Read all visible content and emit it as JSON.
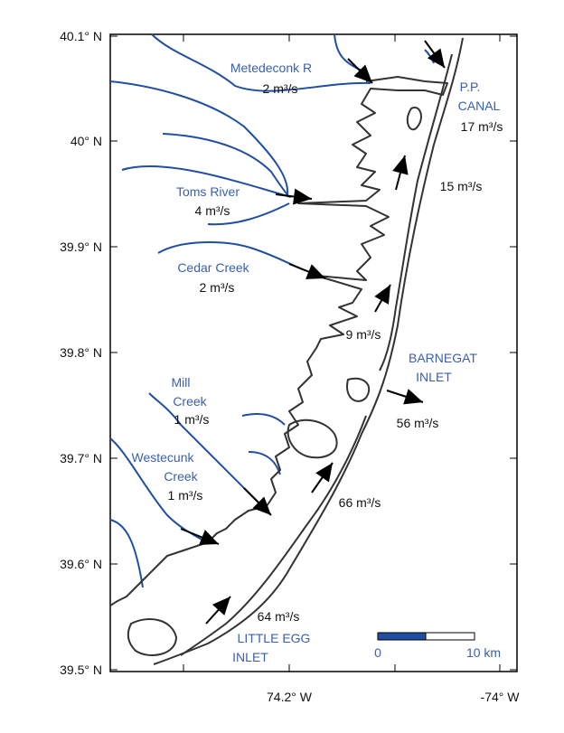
{
  "axes": {
    "lat_labels": [
      "40.1° N",
      "40° N",
      "39.9° N",
      "39.8° N",
      "39.7° N",
      "39.6° N",
      "39.5° N"
    ],
    "lon_labels": [
      "74.2° W",
      "-74° W"
    ]
  },
  "place_labels": [
    {
      "lines": [
        "Metedeconk R"
      ]
    },
    {
      "lines": [
        "P.P.",
        "CANAL"
      ]
    },
    {
      "lines": [
        "Toms River"
      ]
    },
    {
      "lines": [
        "Cedar Creek"
      ]
    },
    {
      "lines": [
        "Mill",
        "Creek"
      ]
    },
    {
      "lines": [
        "Westecunk",
        "Creek"
      ]
    },
    {
      "lines": [
        "BARNEGAT",
        "INLET"
      ]
    },
    {
      "lines": [
        "LITTLE EGG",
        "INLET"
      ]
    }
  ],
  "flow_labels": [
    "2 m³/s",
    "17 m³/s",
    "15 m³/s",
    "4 m³/s",
    "2 m³/s",
    "9 m³/s",
    "1 m³/s",
    "1 m³/s",
    "56 m³/s",
    "66 m³/s",
    "64 m³/s"
  ],
  "scale_bar": {
    "start": "0",
    "end": "10 km"
  }
}
